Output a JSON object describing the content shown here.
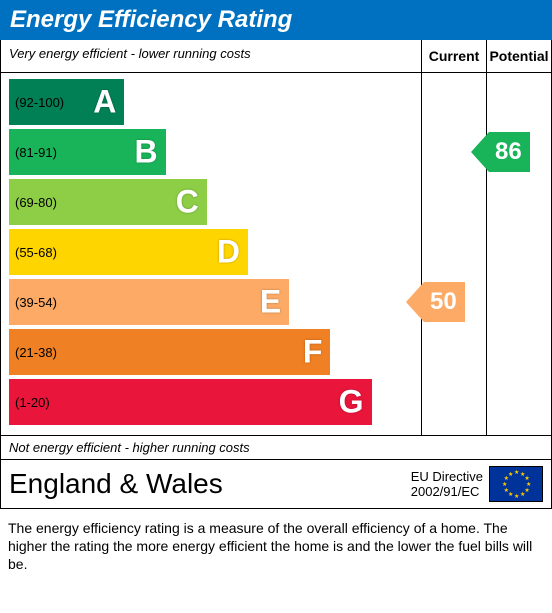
{
  "title": "Energy Efficiency Rating",
  "title_bg": "#0070c0",
  "header": {
    "top_note": "Very energy efficient - lower running costs",
    "bottom_note": "Not energy efficient - higher running costs",
    "current_label": "Current",
    "potential_label": "Potential"
  },
  "bands": [
    {
      "letter": "A",
      "range": "(92-100)",
      "color": "#008054",
      "width_pct": 28
    },
    {
      "letter": "B",
      "range": "(81-91)",
      "color": "#19b459",
      "width_pct": 38
    },
    {
      "letter": "C",
      "range": "(69-80)",
      "color": "#8dce46",
      "width_pct": 48
    },
    {
      "letter": "D",
      "range": "(55-68)",
      "color": "#ffd500",
      "width_pct": 58
    },
    {
      "letter": "E",
      "range": "(39-54)",
      "color": "#fcaa65",
      "width_pct": 68
    },
    {
      "letter": "F",
      "range": "(21-38)",
      "color": "#ef8023",
      "width_pct": 78
    },
    {
      "letter": "G",
      "range": "(1-20)",
      "color": "#e9153b",
      "width_pct": 88
    }
  ],
  "current": {
    "value": "50",
    "band_index": 4,
    "color": "#fcaa65"
  },
  "potential": {
    "value": "86",
    "band_index": 1,
    "color": "#19b459"
  },
  "region": {
    "name": "England & Wales",
    "directive_line1": "EU Directive",
    "directive_line2": "2002/91/EC"
  },
  "caption": "The energy efficiency rating is a measure of the overall efficiency of a home.  The higher the rating the more energy efficient the home is and the lower the fuel bills will be."
}
